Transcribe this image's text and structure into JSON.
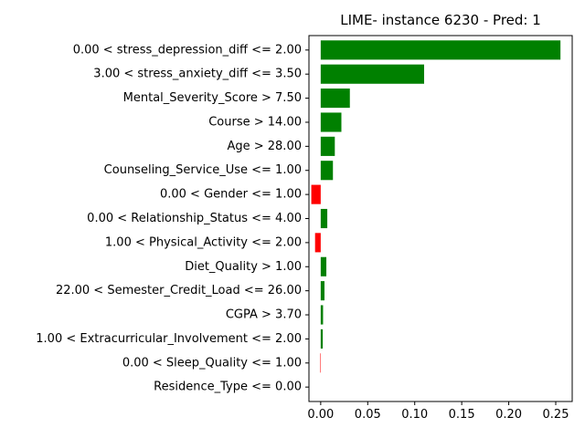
{
  "chart_data": {
    "type": "bar",
    "orientation": "horizontal",
    "title": "LIME- instance 6230 - Pred: 1",
    "xlabel": "",
    "ylabel": "",
    "xlim": [
      -0.0125,
      0.2675
    ],
    "xticks": [
      0.0,
      0.05,
      0.1,
      0.15,
      0.2,
      0.25
    ],
    "xtick_labels": [
      "0.00",
      "0.05",
      "0.10",
      "0.15",
      "0.20",
      "0.25"
    ],
    "grid": false,
    "legend": "none",
    "colors": {
      "positive": "#008000",
      "negative": "#ff0000",
      "axis": "#000000"
    },
    "categories": [
      "0.00 < stress_depression_diff <= 2.00",
      "3.00 < stress_anxiety_diff <= 3.50",
      "Mental_Severity_Score > 7.50",
      "Course > 14.00",
      "Age > 28.00",
      "Counseling_Service_Use <= 1.00",
      "0.00 < Gender <= 1.00",
      "0.00 < Relationship_Status <= 4.00",
      "1.00 < Physical_Activity <= 2.00",
      "Diet_Quality > 1.00",
      "22.00 < Semester_Credit_Load <= 26.00",
      "CGPA > 3.70",
      "1.00 < Extracurricular_Involvement <= 2.00",
      "0.00 < Sleep_Quality <= 1.00",
      "Residence_Type <= 0.00"
    ],
    "values": [
      0.255,
      0.11,
      0.031,
      0.022,
      0.015,
      0.013,
      -0.01,
      0.007,
      -0.006,
      0.006,
      0.004,
      0.0025,
      0.0022,
      -0.0005,
      0.0
    ]
  }
}
